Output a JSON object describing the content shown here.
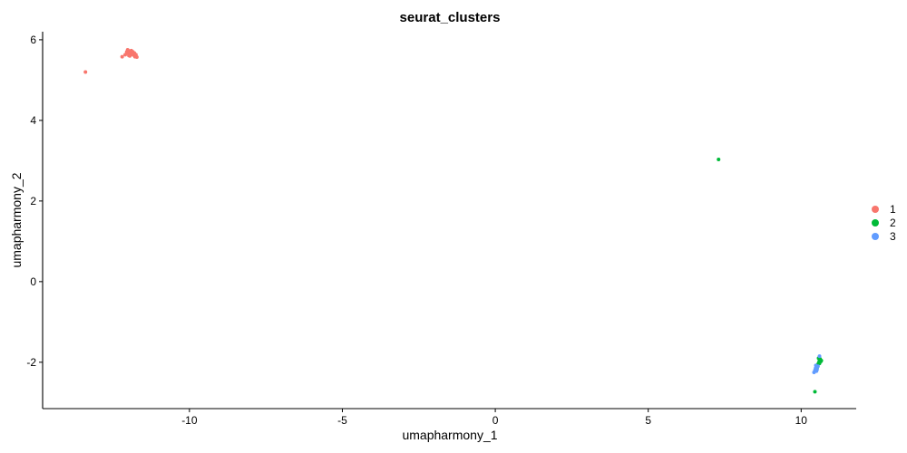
{
  "chart_data": {
    "type": "scatter",
    "title": "seurat_clusters",
    "xlabel": "umapharmony_1",
    "ylabel": "umapharmony_2",
    "xlim": [
      -14.8,
      11.8
    ],
    "ylim": [
      -3.15,
      6.2
    ],
    "x_ticks": [
      -10,
      -5,
      0,
      5,
      10
    ],
    "x_tick_labels": [
      "-10",
      "-5",
      "0",
      "5",
      "10"
    ],
    "y_ticks": [
      -2,
      0,
      2,
      4,
      6
    ],
    "y_tick_labels": [
      "-2",
      "0",
      "2",
      "4",
      "6"
    ],
    "grid": false,
    "legend": "right",
    "series": [
      {
        "name": "1",
        "color": "#F8766D",
        "points": [
          {
            "x": -13.4,
            "y": 5.2
          },
          {
            "x": -12.2,
            "y": 5.58
          },
          {
            "x": -12.1,
            "y": 5.63
          },
          {
            "x": -12.05,
            "y": 5.7
          },
          {
            "x": -12.02,
            "y": 5.75
          },
          {
            "x": -12.0,
            "y": 5.66
          },
          {
            "x": -11.97,
            "y": 5.72
          },
          {
            "x": -11.95,
            "y": 5.6
          },
          {
            "x": -11.93,
            "y": 5.68
          },
          {
            "x": -11.9,
            "y": 5.73
          },
          {
            "x": -11.88,
            "y": 5.64
          },
          {
            "x": -11.85,
            "y": 5.7
          },
          {
            "x": -11.83,
            "y": 5.62
          },
          {
            "x": -11.8,
            "y": 5.67
          },
          {
            "x": -11.78,
            "y": 5.58
          },
          {
            "x": -11.75,
            "y": 5.63
          },
          {
            "x": -11.72,
            "y": 5.57
          },
          {
            "x": -11.98,
            "y": 5.61
          },
          {
            "x": -11.87,
            "y": 5.66
          }
        ]
      },
      {
        "name": "2",
        "color": "#00BA38",
        "points": [
          {
            "x": 7.3,
            "y": 3.03
          },
          {
            "x": 10.45,
            "y": -2.73
          },
          {
            "x": 10.5,
            "y": -2.1
          },
          {
            "x": 10.55,
            "y": -2.05
          },
          {
            "x": 10.58,
            "y": -2.0
          },
          {
            "x": 10.6,
            "y": -1.95
          },
          {
            "x": 10.62,
            "y": -1.92
          },
          {
            "x": 10.64,
            "y": -1.98
          },
          {
            "x": 10.6,
            "y": -2.03
          },
          {
            "x": 10.53,
            "y": -2.12
          },
          {
            "x": 10.66,
            "y": -1.96
          },
          {
            "x": 10.57,
            "y": -1.9
          }
        ]
      },
      {
        "name": "3",
        "color": "#619CFF",
        "points": [
          {
            "x": 10.42,
            "y": -2.25
          },
          {
            "x": 10.45,
            "y": -2.2
          },
          {
            "x": 10.47,
            "y": -2.15
          },
          {
            "x": 10.5,
            "y": -2.22
          },
          {
            "x": 10.55,
            "y": -2.1
          },
          {
            "x": 10.48,
            "y": -2.08
          },
          {
            "x": 10.6,
            "y": -1.85
          },
          {
            "x": 10.52,
            "y": -2.18
          }
        ]
      }
    ]
  }
}
